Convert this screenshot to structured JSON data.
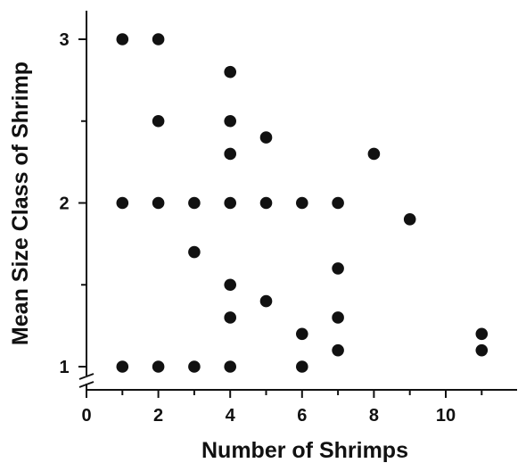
{
  "chart_data": {
    "type": "scatter",
    "title": "",
    "xlabel": "Number of Shrimps",
    "ylabel": "Mean Size Class of Shrimp",
    "xlim": [
      0,
      11.8
    ],
    "ylim": [
      1,
      3.2
    ],
    "x_ticks": [
      0,
      2,
      4,
      6,
      8,
      10
    ],
    "x_minor_ticks": [
      1,
      3,
      5,
      7,
      9,
      11
    ],
    "y_ticks": [
      1,
      2,
      3
    ],
    "y_minor_ticks": [
      1.5,
      2.5
    ],
    "y_axis_break": true,
    "grid": false,
    "marker_color": "#111111",
    "points": [
      {
        "x": 1,
        "y": 3.0
      },
      {
        "x": 2,
        "y": 3.0
      },
      {
        "x": 4,
        "y": 2.8
      },
      {
        "x": 2,
        "y": 2.5
      },
      {
        "x": 4,
        "y": 2.5
      },
      {
        "x": 5,
        "y": 2.4
      },
      {
        "x": 4,
        "y": 2.3
      },
      {
        "x": 8,
        "y": 2.3
      },
      {
        "x": 1,
        "y": 2.0
      },
      {
        "x": 2,
        "y": 2.0
      },
      {
        "x": 3,
        "y": 2.0
      },
      {
        "x": 4,
        "y": 2.0
      },
      {
        "x": 5,
        "y": 2.0
      },
      {
        "x": 6,
        "y": 2.0
      },
      {
        "x": 7,
        "y": 2.0
      },
      {
        "x": 9,
        "y": 1.9
      },
      {
        "x": 3,
        "y": 1.7
      },
      {
        "x": 7,
        "y": 1.6
      },
      {
        "x": 4,
        "y": 1.5
      },
      {
        "x": 5,
        "y": 1.4
      },
      {
        "x": 4,
        "y": 1.3
      },
      {
        "x": 7,
        "y": 1.3
      },
      {
        "x": 6,
        "y": 1.2
      },
      {
        "x": 11,
        "y": 1.2
      },
      {
        "x": 7,
        "y": 1.1
      },
      {
        "x": 11,
        "y": 1.1
      },
      {
        "x": 1,
        "y": 1.0
      },
      {
        "x": 2,
        "y": 1.0
      },
      {
        "x": 3,
        "y": 1.0
      },
      {
        "x": 4,
        "y": 1.0
      },
      {
        "x": 6,
        "y": 1.0
      }
    ]
  }
}
